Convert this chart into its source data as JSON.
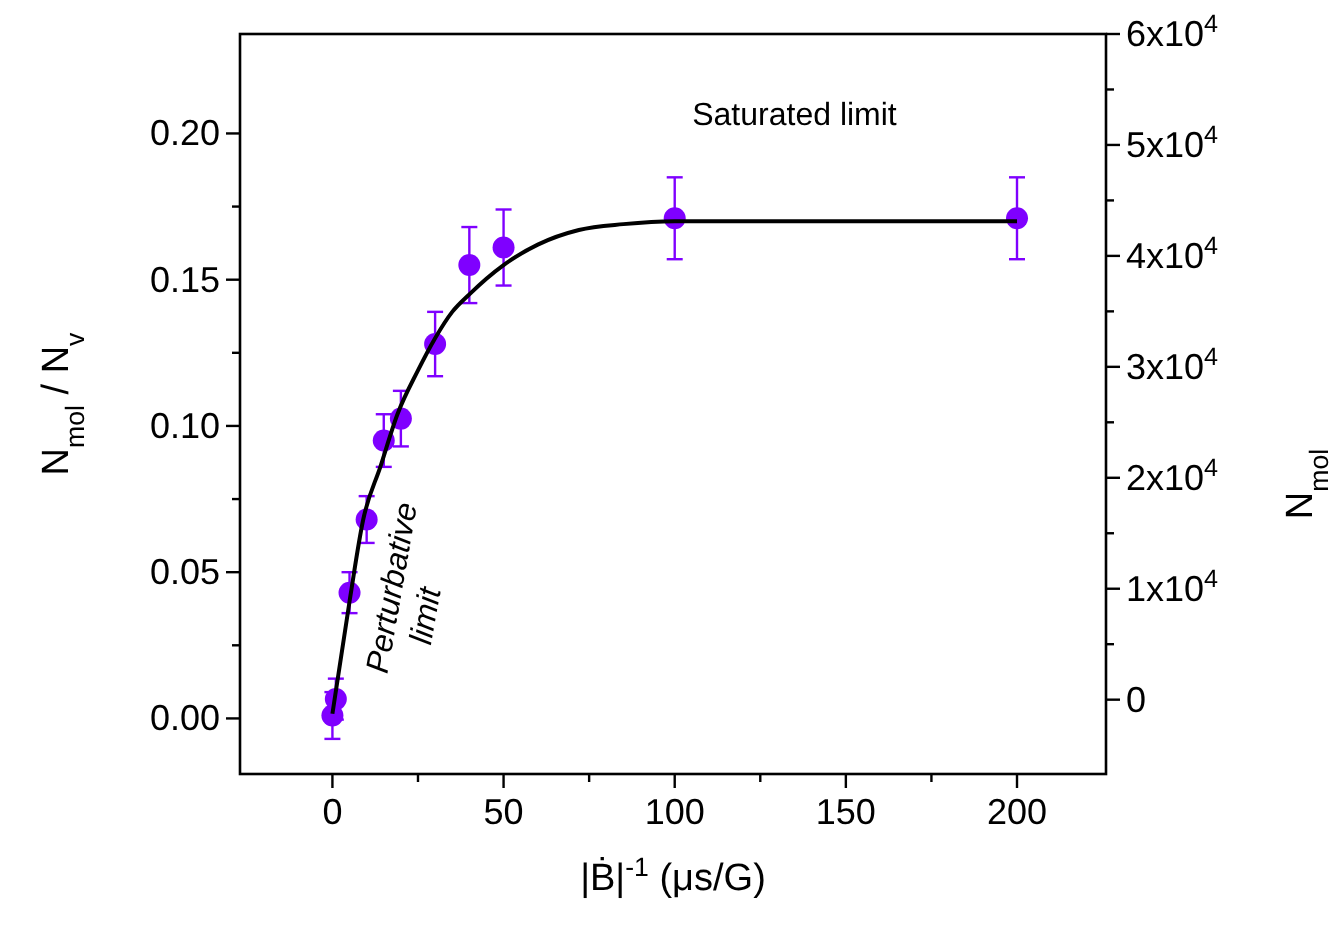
{
  "chart_data": {
    "type": "scatter",
    "xlabel": "|Ḃ|$^{-1}$ (μs/G)",
    "ylabel": "N$_{mol}$ / N$_{v}$",
    "y2label": "N$_{mol}$",
    "xlim": [
      -27,
      226
    ],
    "ylim": [
      -0.019,
      0.234
    ],
    "y2lim": [
      -6700,
      60000
    ],
    "xticks": [
      0,
      {
        "value": 25,
        "label": null
      },
      50,
      {
        "value": 75,
        "label": null
      },
      100,
      {
        "value": 125,
        "label": null
      },
      150,
      {
        "value": 175,
        "label": null
      },
      200
    ],
    "yticks": [
      {
        "value": 0,
        "label": "0.00"
      },
      {
        "value": 0.025,
        "label": null
      },
      0.05,
      {
        "value": 0.075,
        "label": null
      },
      {
        "value": 0.1,
        "label": "0.10"
      },
      {
        "value": 0.125,
        "label": null
      },
      0.15,
      {
        "value": 0.175,
        "label": null
      },
      {
        "value": 0.2,
        "label": "0.20"
      }
    ],
    "y2ticks": [
      0,
      {
        "value": 5000,
        "label": null
      },
      {
        "value": 10000,
        "label": "1x10$^{4}$"
      },
      {
        "value": 15000,
        "label": null
      },
      {
        "value": 20000,
        "label": "2x10$^{4}$"
      },
      {
        "value": 25000,
        "label": null
      },
      {
        "value": 30000,
        "label": "3x10$^{4}$"
      },
      {
        "value": 35000,
        "label": null
      },
      {
        "value": 40000,
        "label": "4x10$^{4}$"
      },
      {
        "value": 45000,
        "label": null
      },
      {
        "value": 50000,
        "label": "5x10$^{4}$"
      },
      {
        "value": 55000,
        "label": null
      },
      {
        "value": 60000,
        "label": "6x10$^{4}$"
      }
    ],
    "grid": false,
    "marker": "circle",
    "annotations": [
      "Saturated limit",
      "Perturbative limit"
    ],
    "series": [
      {
        "color": "#7f00ff",
        "x": [
          0,
          1,
          5,
          10,
          15,
          20,
          30,
          40,
          50,
          100,
          200
        ],
        "values": [
          0.001,
          0.0066,
          0.043,
          0.068,
          0.095,
          0.1025,
          0.128,
          0.155,
          0.161,
          0.171,
          0.171
        ],
        "errors": [
          0.008,
          0.007,
          0.007,
          0.008,
          0.009,
          0.0095,
          0.011,
          0.013,
          0.013,
          0.014,
          0.014
        ]
      },
      {
        "type": "line",
        "color": "#000000",
        "marker": "none",
        "line_style": "solid",
        "x": [
          0,
          5,
          9,
          14,
          19,
          25,
          30,
          35,
          40,
          50,
          60,
          72,
          85,
          100,
          150,
          200
        ],
        "values": [
          0.0016,
          0.04,
          0.068,
          0.086,
          0.104,
          0.119,
          0.13,
          0.139,
          0.145,
          0.155,
          0.162,
          0.167,
          0.169,
          0.17,
          0.17,
          0.17
        ]
      }
    ]
  }
}
